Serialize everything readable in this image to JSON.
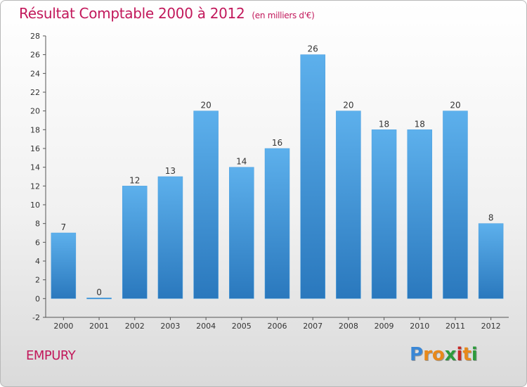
{
  "header": {
    "title": "Résultat Comptable 2000 à 2012",
    "unit": "(en milliers d'€)"
  },
  "footer": {
    "city": "EMPURY"
  },
  "logo": {
    "letters": [
      "P",
      "r",
      "o",
      "x",
      "i",
      "t",
      "i"
    ],
    "colors": [
      "#3a87d6",
      "#e8891a",
      "#e8891a",
      "#2d9a3c",
      "#c62828",
      "#e8891a",
      "#2d9a3c"
    ]
  },
  "colors": {
    "bar": "#4a9fe0",
    "bar_dark": "#2a78bd",
    "bar_light": "#5db0ec",
    "title": "#c2185b"
  },
  "chart_data": {
    "type": "bar",
    "title": "Résultat Comptable 2000 à 2012",
    "subtitle": "(en milliers d'€)",
    "xlabel": "",
    "ylabel": "",
    "categories": [
      "2000",
      "2001",
      "2002",
      "2003",
      "2004",
      "2005",
      "2006",
      "2007",
      "2008",
      "2009",
      "2010",
      "2011",
      "2012"
    ],
    "values": [
      7,
      0,
      12,
      13,
      20,
      14,
      16,
      26,
      20,
      18,
      18,
      20,
      8
    ],
    "ylim": [
      -2,
      28
    ],
    "yticks": [
      -2,
      0,
      2,
      4,
      6,
      8,
      10,
      12,
      14,
      16,
      18,
      20,
      22,
      24,
      26,
      28
    ],
    "grid": false,
    "legend": "none"
  }
}
